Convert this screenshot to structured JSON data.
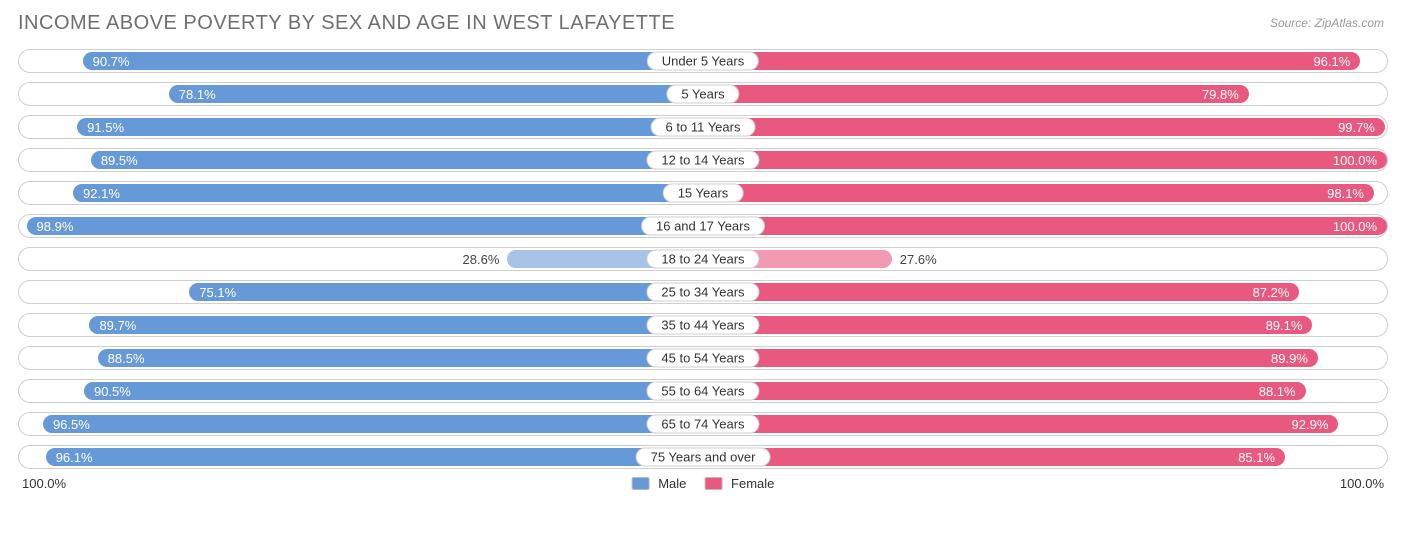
{
  "title": "INCOME ABOVE POVERTY BY SEX AND AGE IN WEST LAFAYETTE",
  "source": "Source: ZipAtlas.com",
  "colors": {
    "male": "#6699d8",
    "female": "#e9587f",
    "male_faded": "#a8c3e8",
    "female_faded": "#f29ab4",
    "row_border": "#cfcfcf",
    "bg": "#ffffff",
    "label_text": "#ffffff",
    "outside_text": "#444444"
  },
  "legend": {
    "male": "Male",
    "female": "Female"
  },
  "axis": {
    "left": "100.0%",
    "right": "100.0%"
  },
  "chart": {
    "type": "diverging-bar",
    "max": 100.0,
    "fade_threshold": 35.0,
    "rows": [
      {
        "age": "Under 5 Years",
        "male": 90.7,
        "female": 96.1
      },
      {
        "age": "5 Years",
        "male": 78.1,
        "female": 79.8
      },
      {
        "age": "6 to 11 Years",
        "male": 91.5,
        "female": 99.7
      },
      {
        "age": "12 to 14 Years",
        "male": 89.5,
        "female": 100.0
      },
      {
        "age": "15 Years",
        "male": 92.1,
        "female": 98.1
      },
      {
        "age": "16 and 17 Years",
        "male": 98.9,
        "female": 100.0
      },
      {
        "age": "18 to 24 Years",
        "male": 28.6,
        "female": 27.6
      },
      {
        "age": "25 to 34 Years",
        "male": 75.1,
        "female": 87.2
      },
      {
        "age": "35 to 44 Years",
        "male": 89.7,
        "female": 89.1
      },
      {
        "age": "45 to 54 Years",
        "male": 88.5,
        "female": 89.9
      },
      {
        "age": "55 to 64 Years",
        "male": 90.5,
        "female": 88.1
      },
      {
        "age": "65 to 74 Years",
        "male": 96.5,
        "female": 92.9
      },
      {
        "age": "75 Years and over",
        "male": 96.1,
        "female": 85.1
      }
    ]
  }
}
